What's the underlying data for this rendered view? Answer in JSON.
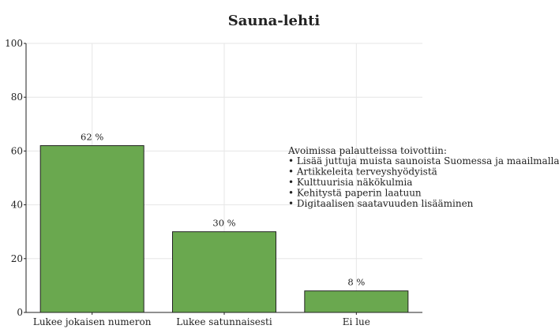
{
  "chart_data": {
    "type": "bar",
    "title": "Sauna-lehti",
    "xlabel": "",
    "ylabel": "",
    "categories": [
      "Lukee jokaisen numeron",
      "Lukee satunnaisesti",
      "Ei lue"
    ],
    "values": [
      62,
      30,
      8
    ],
    "data_labels": [
      "62 %",
      "30 %",
      "8 %"
    ],
    "ylim": [
      0,
      100
    ],
    "yticks": [
      0,
      20,
      40,
      60,
      80,
      100
    ],
    "grid": true,
    "bar_color": "#6aa84f",
    "annotation": {
      "heading": "Avoimissa palautteissa toivottiin:",
      "items": [
        "• Lisää juttuja muista saunoista Suomessa ja maailmalla",
        "• Artikkeleita terveyshyödyistä",
        "• Kulttuurisia näkökulmia",
        "• Kehitystä paperin laatuun",
        "• Digitaalisen saatavuuden lisääminen"
      ]
    }
  }
}
